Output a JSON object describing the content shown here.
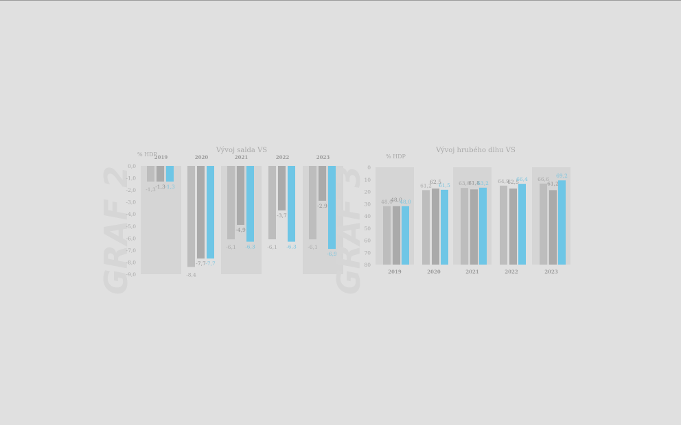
{
  "colors": {
    "background": "#e0e0e0",
    "panel": "#d5d5d5",
    "bar_light": "#bdbdbd",
    "bar_mid": "#aaaaaa",
    "bar_blue": "#6ec6e6",
    "text": "#a9a9a9",
    "blue_text": "#79c5df"
  },
  "chart_data": [
    {
      "type": "bar",
      "title": "Vývoj salda VS",
      "ylabel": "% HDP",
      "watermark": "GRAF 2",
      "categories": [
        "2019",
        "2020",
        "2021",
        "2022",
        "2023"
      ],
      "ylim": [
        -9.0,
        0.0
      ],
      "yticks": [
        "0,0",
        "-1,0",
        "-2,0",
        "-3,0",
        "-4,0",
        "-5,0",
        "-6,0",
        "-7,0",
        "-8,0",
        "-9,0"
      ],
      "shaded_categories": [
        "2019",
        "2021",
        "2023"
      ],
      "series": [
        {
          "values": [
            -1.3,
            -8.4,
            -6.1,
            -6.1,
            -6.1
          ],
          "labels": [
            "-1,3",
            "-8,4",
            "-6,1",
            "-6,1",
            "-6,1"
          ],
          "color": "#bdbdbd"
        },
        {
          "values": [
            -1.3,
            -7.7,
            -4.9,
            -3.7,
            -2.9
          ],
          "labels": [
            "-1,3",
            "-7,7",
            "-4,9",
            "-3,7",
            "-2,9"
          ],
          "color": "#aaaaaa"
        },
        {
          "values": [
            -1.3,
            -7.7,
            -6.3,
            -6.3,
            -6.9
          ],
          "labels": [
            "-1,3",
            "-7,7",
            "-6,3",
            "-6,3",
            "-6,9"
          ],
          "color": "#6ec6e6"
        }
      ]
    },
    {
      "type": "bar",
      "title": "Vývoj hrubého dlhu VS",
      "ylabel": "% HDP",
      "watermark": "GRAF 3",
      "categories": [
        "2019",
        "2020",
        "2021",
        "2022",
        "2023"
      ],
      "ylim": [
        0,
        80
      ],
      "yticks": [
        "0",
        "10",
        "20",
        "30",
        "40",
        "50",
        "60",
        "70",
        "80"
      ],
      "shaded_categories": [
        "2019",
        "2021",
        "2023"
      ],
      "series": [
        {
          "values": [
            48.0,
            61.2,
            63.0,
            64.9,
            66.6
          ],
          "labels": [
            "48,0",
            "61,2",
            "63,0",
            "64,9",
            "66,6"
          ],
          "color": "#bdbdbd"
        },
        {
          "values": [
            48.0,
            62.5,
            61.8,
            62.5,
            61.2
          ],
          "labels": [
            "48,0",
            "62,5",
            "61,8",
            "62,5",
            "61,2"
          ],
          "color": "#aaaaaa"
        },
        {
          "values": [
            48.0,
            61.5,
            63.2,
            66.4,
            69.2
          ],
          "labels": [
            "48,0",
            "61,5",
            "63,2",
            "66,4",
            "69,2"
          ],
          "color": "#6ec6e6"
        }
      ]
    }
  ]
}
